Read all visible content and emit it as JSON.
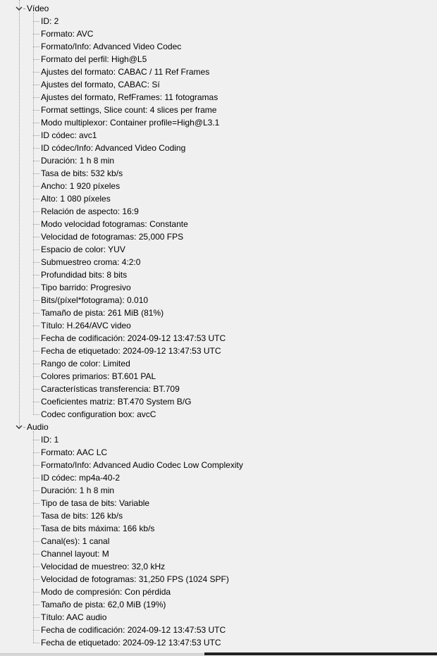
{
  "sections": [
    {
      "title": "Vídeo",
      "expanded": true,
      "items": [
        "ID: 2",
        "Formato: AVC",
        "Formato/Info: Advanced Video Codec",
        "Formato del perfil: High@L5",
        "Ajustes del formato: CABAC / 11 Ref Frames",
        "Ajustes del formato, CABAC: Sí",
        "Ajustes del formato, RefFrames: 11 fotogramas",
        "Format settings, Slice count: 4 slices per frame",
        "Modo multiplexor: Container profile=High@L3.1",
        "ID códec: avc1",
        "ID códec/Info: Advanced Video Coding",
        "Duración: 1 h 8 min",
        "Tasa de bits: 532 kb/s",
        "Ancho: 1 920 píxeles",
        "Alto: 1 080 píxeles",
        "Relación de aspecto: 16:9",
        "Modo velocidad fotogramas: Constante",
        "Velocidad de fotogramas: 25,000 FPS",
        "Espacio de color: YUV",
        "Submuestreo croma: 4:2:0",
        "Profundidad bits: 8 bits",
        "Tipo barrido: Progresivo",
        "Bits/(píxel*fotograma): 0.010",
        "Tamaño de pista: 261 MiB (81%)",
        "Título: H.264/AVC video",
        "Fecha de codificación: 2024-09-12 13:47:53 UTC",
        "Fecha de etiquetado: 2024-09-12 13:47:53 UTC",
        "Rango de color: Limited",
        "Colores primarios: BT.601 PAL",
        "Características transferencia: BT.709",
        "Coeficientes matriz: BT.470 System B/G",
        "Codec configuration box: avcC"
      ]
    },
    {
      "title": "Audio",
      "expanded": true,
      "items": [
        "ID: 1",
        "Formato: AAC LC",
        "Formato/Info: Advanced Audio Codec Low Complexity",
        "ID códec: mp4a-40-2",
        "Duración: 1 h 8 min",
        "Tipo de tasa de bits: Variable",
        "Tasa de bits: 126 kb/s",
        "Tasa de bits máxima: 166 kb/s",
        "Canal(es): 1 canal",
        "Channel layout: M",
        "Velocidad de muestreo: 32,0 kHz",
        "Velocidad de fotogramas: 31,250 FPS (1024 SPF)",
        "Modo de compresión: Con pérdida",
        "Tamaño de pista: 62,0 MiB (19%)",
        "Título: AAC audio",
        "Fecha de codificación: 2024-09-12 13:47:53 UTC",
        "Fecha de etiquetado: 2024-09-12 13:47:53 UTC"
      ]
    }
  ]
}
